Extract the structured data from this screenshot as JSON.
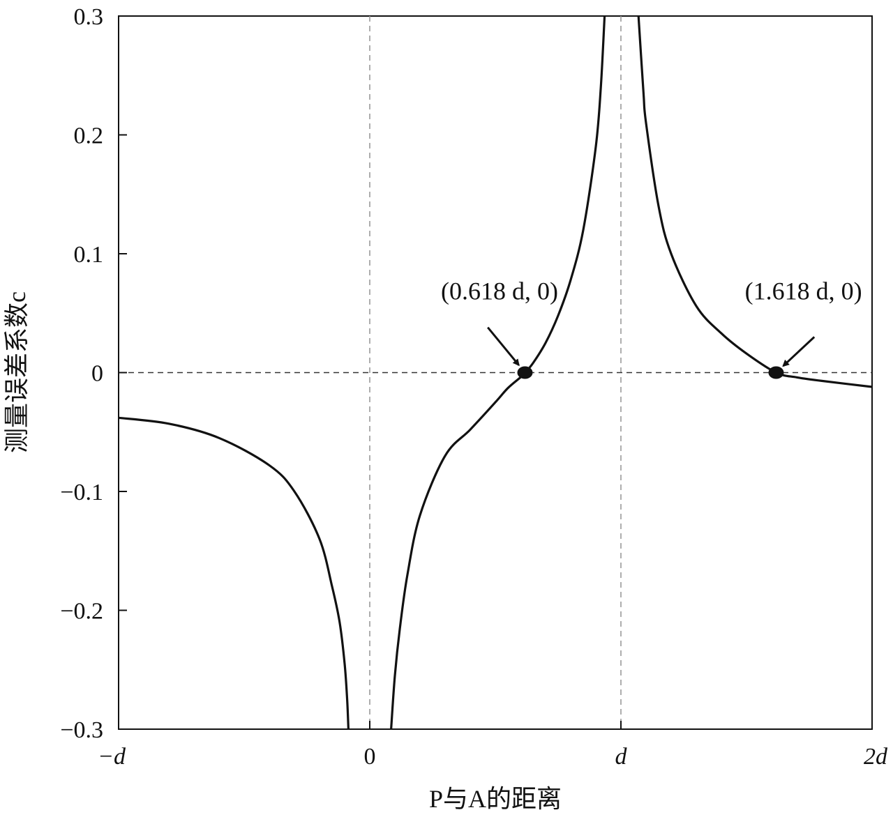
{
  "chart_data": {
    "type": "line",
    "title": "",
    "xlabel": "P与A的距离",
    "ylabel": "测量误差系数c",
    "xlim": [
      -1,
      2
    ],
    "ylim": [
      -0.3,
      0.3
    ],
    "grid": false,
    "x_ticks": [
      {
        "value": -1,
        "label": "−d"
      },
      {
        "value": 0,
        "label": "0"
      },
      {
        "value": 1,
        "label": "d"
      },
      {
        "value": 2,
        "label": "2d"
      }
    ],
    "y_ticks": [
      {
        "value": 0.3,
        "label": "0.3"
      },
      {
        "value": 0.2,
        "label": "0.2"
      },
      {
        "value": 0.1,
        "label": "0.1"
      },
      {
        "value": 0,
        "label": "0"
      },
      {
        "value": -0.1,
        "label": "−0.1"
      },
      {
        "value": -0.2,
        "label": "−0.2"
      },
      {
        "value": -0.3,
        "label": "−0.3"
      }
    ],
    "reference_lines": {
      "vertical": [
        0,
        1
      ],
      "horizontal": [
        0
      ]
    },
    "series": [
      {
        "segments": [
          {
            "x": [
              -1.0,
              -0.8,
              -0.6,
              -0.4,
              -0.3,
              -0.2,
              -0.15,
              -0.12,
              -0.1,
              -0.09,
              -0.085
            ],
            "y": [
              -0.038,
              -0.043,
              -0.055,
              -0.078,
              -0.1,
              -0.14,
              -0.18,
              -0.21,
              -0.245,
              -0.275,
              -0.3
            ]
          },
          {
            "x": [
              0.085,
              0.1,
              0.12,
              0.15,
              0.2,
              0.3,
              0.4,
              0.5,
              0.55,
              0.6,
              0.618,
              0.65,
              0.7,
              0.75,
              0.8,
              0.85,
              0.9,
              0.92,
              0.935
            ],
            "y": [
              -0.3,
              -0.255,
              -0.215,
              -0.17,
              -0.12,
              -0.07,
              -0.048,
              -0.025,
              -0.013,
              -0.004,
              0.0,
              0.008,
              0.025,
              0.048,
              0.078,
              0.12,
              0.19,
              0.24,
              0.3
            ]
          },
          {
            "x": [
              1.07,
              1.09,
              1.1,
              1.15,
              1.2,
              1.3,
              1.4,
              1.5,
              1.618,
              1.7,
              1.8,
              2.0
            ],
            "y": [
              0.3,
              0.235,
              0.21,
              0.14,
              0.1,
              0.056,
              0.033,
              0.016,
              0.0,
              -0.004,
              -0.007,
              -0.012
            ]
          }
        ]
      }
    ],
    "points": [
      {
        "x": 0.618,
        "y": 0,
        "label": "(0.618 d, 0)",
        "label_x": 0.45,
        "label_y": 0.058,
        "arrow_from": [
          0.47,
          0.038
        ]
      },
      {
        "x": 1.618,
        "y": 0,
        "label": "(1.618 d, 0)",
        "label_x": 1.66,
        "label_y": 0.058,
        "arrow_from": [
          1.77,
          0.03
        ]
      }
    ]
  }
}
